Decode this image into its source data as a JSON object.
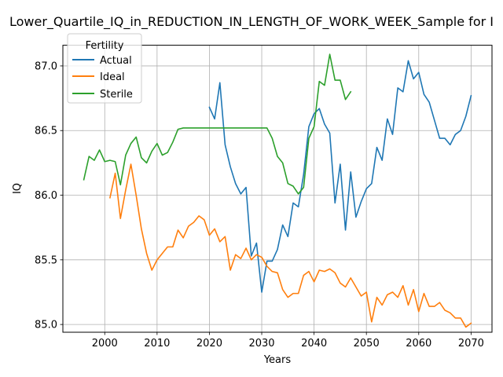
{
  "chart_data": {
    "type": "line",
    "title": "Lower_Quartile_IQ_in_REDUCTION_IN_LENGTH_OF_WORK_WEEK_Sample for I",
    "xlabel": "Years",
    "ylabel": "IQ",
    "xlim": [
      1992,
      2074
    ],
    "ylim": [
      84.94,
      87.16
    ],
    "xticks": [
      2000,
      2010,
      2020,
      2030,
      2040,
      2050,
      2060,
      2070
    ],
    "yticks": [
      85.0,
      85.5,
      86.0,
      86.5,
      87.0
    ],
    "xtick_labels": [
      "2000",
      "2010",
      "2020",
      "2030",
      "2040",
      "2050",
      "2060",
      "2070"
    ],
    "ytick_labels": [
      "85.0",
      "85.5",
      "86.0",
      "86.5",
      "87.0"
    ],
    "grid": true,
    "legend": {
      "title": "Fertility",
      "placement": "top-left",
      "entries": [
        "Actual",
        "Ideal",
        "Sterile"
      ]
    },
    "series": [
      {
        "name": "Actual",
        "color": "#1f77b4",
        "x": [
          2020,
          2021,
          2022,
          2023,
          2024,
          2025,
          2026,
          2027,
          2028,
          2029,
          2030,
          2031,
          2032,
          2033,
          2034,
          2035,
          2036,
          2037,
          2038,
          2039,
          2040,
          2041,
          2042,
          2043,
          2044,
          2045,
          2046,
          2047,
          2048,
          2049,
          2050,
          2051,
          2052,
          2053,
          2054,
          2055,
          2056,
          2057,
          2058,
          2059,
          2060,
          2061,
          2062,
          2063,
          2064,
          2065,
          2066,
          2067,
          2068,
          2069,
          2070
        ],
        "values": [
          86.68,
          86.59,
          86.87,
          86.39,
          86.22,
          86.09,
          86.01,
          86.06,
          85.53,
          85.63,
          85.25,
          85.49,
          85.49,
          85.58,
          85.77,
          85.68,
          85.94,
          85.91,
          86.16,
          86.53,
          86.63,
          86.67,
          86.55,
          86.48,
          85.94,
          86.24,
          85.73,
          86.18,
          85.83,
          85.95,
          86.05,
          86.09,
          86.37,
          86.27,
          86.59,
          86.47,
          86.83,
          86.8,
          87.04,
          86.9,
          86.95,
          86.78,
          86.72,
          86.58,
          86.44,
          86.44,
          86.39,
          86.47,
          86.5,
          86.61,
          86.77
        ]
      },
      {
        "name": "Ideal",
        "color": "#ff7f0e",
        "x": [
          2001,
          2002,
          2003,
          2004,
          2005,
          2006,
          2007,
          2008,
          2009,
          2010,
          2011,
          2012,
          2013,
          2014,
          2015,
          2016,
          2017,
          2018,
          2019,
          2020,
          2021,
          2022,
          2023,
          2024,
          2025,
          2026,
          2027,
          2028,
          2029,
          2030,
          2031,
          2032,
          2033,
          2034,
          2035,
          2036,
          2037,
          2038,
          2039,
          2040,
          2041,
          2042,
          2043,
          2044,
          2045,
          2046,
          2047,
          2048,
          2049,
          2050,
          2051,
          2052,
          2053,
          2054,
          2055,
          2056,
          2057,
          2058,
          2059,
          2060,
          2061,
          2062,
          2063,
          2064,
          2065,
          2066,
          2067,
          2068,
          2069,
          2070
        ],
        "values": [
          85.98,
          86.17,
          85.82,
          86.04,
          86.24,
          86.0,
          85.74,
          85.55,
          85.42,
          85.5,
          85.55,
          85.6,
          85.6,
          85.73,
          85.67,
          85.76,
          85.79,
          85.84,
          85.81,
          85.69,
          85.74,
          85.64,
          85.68,
          85.42,
          85.54,
          85.51,
          85.59,
          85.5,
          85.54,
          85.52,
          85.45,
          85.41,
          85.4,
          85.27,
          85.21,
          85.24,
          85.24,
          85.38,
          85.41,
          85.33,
          85.42,
          85.41,
          85.43,
          85.4,
          85.32,
          85.29,
          85.36,
          85.29,
          85.22,
          85.25,
          85.02,
          85.21,
          85.15,
          85.23,
          85.25,
          85.21,
          85.3,
          85.15,
          85.27,
          85.1,
          85.24,
          85.14,
          85.14,
          85.17,
          85.11,
          85.09,
          85.05,
          85.05,
          84.98,
          85.01
        ]
      },
      {
        "name": "Sterile",
        "color": "#2ca02c",
        "x": [
          1996,
          1997,
          1998,
          1999,
          2000,
          2001,
          2002,
          2003,
          2004,
          2005,
          2006,
          2007,
          2008,
          2009,
          2010,
          2011,
          2012,
          2013,
          2014,
          2015,
          2016,
          2017,
          2018,
          2019,
          2020,
          2021,
          2022,
          2023,
          2024,
          2025,
          2026,
          2027,
          2028,
          2029,
          2030,
          2031,
          2032,
          2033,
          2034,
          2035,
          2036,
          2037,
          2038,
          2039,
          2040,
          2041,
          2042,
          2043,
          2044,
          2045,
          2046,
          2047
        ],
        "values": [
          86.12,
          86.3,
          86.27,
          86.35,
          86.26,
          86.27,
          86.26,
          86.08,
          86.31,
          86.4,
          86.45,
          86.29,
          86.25,
          86.34,
          86.4,
          86.31,
          86.33,
          86.41,
          86.51,
          86.52,
          86.52,
          86.52,
          86.52,
          86.52,
          86.52,
          86.52,
          86.52,
          86.52,
          86.52,
          86.52,
          86.52,
          86.52,
          86.52,
          86.52,
          86.52,
          86.52,
          86.44,
          86.3,
          86.25,
          86.09,
          86.07,
          86.01,
          86.06,
          86.44,
          86.53,
          86.88,
          86.85,
          87.09,
          86.89,
          86.89,
          86.74,
          86.8
        ]
      }
    ]
  }
}
